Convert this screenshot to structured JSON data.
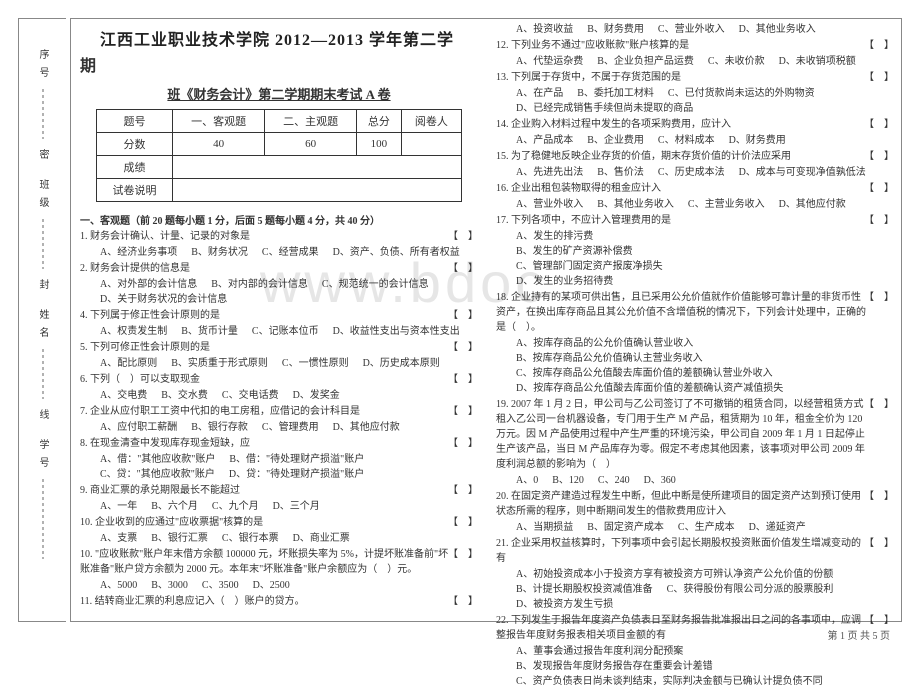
{
  "binding": {
    "labels": [
      "序号",
      "班级",
      "姓名",
      "学号"
    ],
    "marks": [
      "密",
      "封",
      "线"
    ]
  },
  "title_line1": "江西工业职业技术学院 2012—2013 学年第二学",
  "title_line2": "期",
  "subtitle": "班《财务会计》第二学期期末考试 A 卷",
  "score_table": {
    "headers": [
      "题号",
      "一、客观题",
      "二、主观题",
      "总分",
      "阅卷人"
    ],
    "rows": [
      [
        "分数",
        "40",
        "60",
        "100",
        ""
      ],
      [
        "成绩",
        "",
        "",
        "",
        ""
      ],
      [
        "试卷说明",
        "",
        "",
        "",
        ""
      ]
    ]
  },
  "section1_head": "一、客观题（前 20 题每小题 1 分，后面 5 题每小题 4 分，共 40 分）",
  "bracket": "【　】",
  "left_questions": [
    {
      "n": "1.",
      "t": "财务会计确认、计量、记录的对象是",
      "opts": [
        "A、经济业务事项",
        "B、财务状况",
        "C、经营成果",
        "D、资产、负债、所有者权益"
      ]
    },
    {
      "n": "2.",
      "t": "财务会计提供的信息是",
      "opts": [
        "A、对外部的会计信息",
        "B、对内部的会计信息",
        "C、规范统一的会计信息",
        "D、关于财务状况的会计信息"
      ]
    },
    {
      "n": "4.",
      "t": "下列属于修正性会计原则的是",
      "opts": [
        "A、权责发生制",
        "B、货币计量",
        "C、记账本位币",
        "D、收益性支出与资本性支出"
      ]
    },
    {
      "n": "5.",
      "t": "下列可修正性会计原则的是",
      "opts": [
        "A、配比原则",
        "B、实质重于形式原则",
        "C、一惯性原则",
        "D、历史成本原则"
      ]
    },
    {
      "n": "6.",
      "t": "下列（　）可以支取现金",
      "opts": [
        "A、交电费",
        "B、交水费",
        "C、交电话费",
        "D、发奖金"
      ]
    },
    {
      "n": "7.",
      "t": "企业从应付职工工资中代扣的电工房租，应借记的会计科目是",
      "opts": [
        "A、应付职工薪酬",
        "B、银行存款",
        "C、管理费用",
        "D、其他应付款"
      ]
    },
    {
      "n": "8.",
      "t": "在现金清查中发现库存现金短缺，应",
      "opts": [
        "A、借：\"其他应收款\"账户",
        "B、借：\"待处理财产损溢\"账户",
        "C、贷：\"其他应收款\"账户",
        "D、贷：\"待处理财产损溢\"账户"
      ]
    },
    {
      "n": "9.",
      "t": "商业汇票的承兑期限最长不能超过",
      "opts": [
        "A、一年",
        "B、六个月",
        "C、九个月",
        "D、三个月"
      ]
    },
    {
      "n": "10.",
      "t": "企业收到的应通过\"应收票据\"核算的是",
      "opts": [
        "A、支票",
        "B、银行汇票",
        "C、银行本票",
        "D、商业汇票"
      ]
    },
    {
      "n": "10.",
      "t": "\"应收账款\"账户年末借方余额 100000 元，坏账损失率为 5%，计提坏账准备前\"坏账准备\"账户贷方余额为 2000 元。本年末\"坏账准备\"账户余额应为（　）元。",
      "opts": [
        "A、5000",
        "B、3000",
        "C、3500",
        "D、2500"
      ]
    },
    {
      "n": "11.",
      "t": "结转商业汇票的利息应记入（　）账户的贷方。",
      "opts": []
    }
  ],
  "right_questions": [
    {
      "opts": [
        "A、投资收益",
        "B、财务费用",
        "C、营业外收入",
        "D、其他业务收入"
      ]
    },
    {
      "n": "12.",
      "t": "下列业务不通过\"应收账款\"账户核算的是",
      "opts": [
        "A、代垫运杂费",
        "B、企业负担产品运费",
        "C、未收价款",
        "D、未收销项税额"
      ]
    },
    {
      "n": "13.",
      "t": "下列属于存货中，不属于存货范围的是",
      "opts": [
        "A、在产品",
        "B、委托加工材料",
        "C、已付货款尚未运达的外购物资",
        "D、已经完成销售手续但尚未提取的商品"
      ]
    },
    {
      "n": "14.",
      "t": "企业购入材料过程中发生的各项采购费用，应计入",
      "opts": [
        "A、产品成本",
        "B、企业费用",
        "C、材料成本",
        "D、财务费用"
      ]
    },
    {
      "n": "15.",
      "t": "为了稳健地反映企业存货的价值，期末存货价值的计价法应采用",
      "opts": [
        "A、先进先出法",
        "B、售价法",
        "C、历史成本法",
        "D、成本与可变现净值孰低法"
      ]
    },
    {
      "n": "16.",
      "t": "企业出租包装物取得的租金应计入",
      "opts": [
        "A、营业外收入",
        "B、其他业务收入",
        "C、主营业务收入",
        "D、其他应付款"
      ]
    },
    {
      "n": "17.",
      "t": "下列各项中，不应计入管理费用的是",
      "opts": [
        "A、发生的排污费",
        "",
        "B、发生的矿产资源补偿费",
        "",
        "C、管理部门固定资产报废净损失",
        "",
        "D、发生的业务招待费",
        ""
      ]
    },
    {
      "n": "18.",
      "t": "企业持有的某项可供出售，且已采用公允价值就作价值能够可靠计量的非货币性资产，在换出库存商品且其公允价值不含增值税的情况下，下列会计处理中，正确的是（　）。",
      "opts": [
        "A、按库存商品的公允价值确认营业收入",
        "B、按库存商品公允价值确认主营业务收入",
        "C、按库存商品公允值酸去库面价值的差额确认营业外收入",
        "D、按库存商品公允值酸去库面价值的差额确认资产减值损失"
      ]
    },
    {
      "n": "19.",
      "t": "2007 年 1 月 2 日，甲公司与乙公司签订了不可撤销的租赁合同，以经营租赁方式租入乙公司一台机器设备，专门用于生产 M 产品，租赁期为 10 年，租金全价为 120 万元。因 M 产品使用过程中产生严重的环境污染，甲公司自 2009 年 1 月 1 日起停止生产该产品，当日 M 产品库存为零。假定不考虑其他因素，该事项对甲公司 2009 年度利润总额的影响为（　）",
      "opts": [
        "A、0",
        "B、120",
        "C、240",
        "D、360"
      ]
    },
    {
      "n": "20.",
      "t": "在固定资产建造过程发生中断，但此中断是使所建项目的固定资产达到预订使用状态所需的程序，则中断期间发生的借款费用应计入",
      "opts": [
        "A、当期损益",
        "B、固定资产成本",
        "C、生产成本",
        "D、递延资产"
      ]
    },
    {
      "n": "21.",
      "t": "企业采用权益核算时，下列事项中会引起长期股权投资账面价值发生增减变动的有",
      "opts": [
        "A、初始投资成本小于投资方享有被投资方可辨认净资产公允价值的份额",
        "B、计提长期股权投资减值准备",
        "C、获得股份有限公司分派的股票股利",
        "D、被投资方发生亏损"
      ]
    },
    {
      "n": "22.",
      "t": "下列发生于报告年度资产负债表日至财务报告批准报出日之间的各事项中，应调整报告年度财务报表相关项目金额的有",
      "opts": [
        "A、董事会通过报告年度利润分配预案",
        "B、发现报告年度财务报告存在重要会计差错",
        "C、资产负债表日尚未谈判结束，实际判决金额与已确认计提负债不同"
      ]
    }
  ],
  "watermark": "www.bdoc",
  "footer": "第 1 页 共 5 页"
}
